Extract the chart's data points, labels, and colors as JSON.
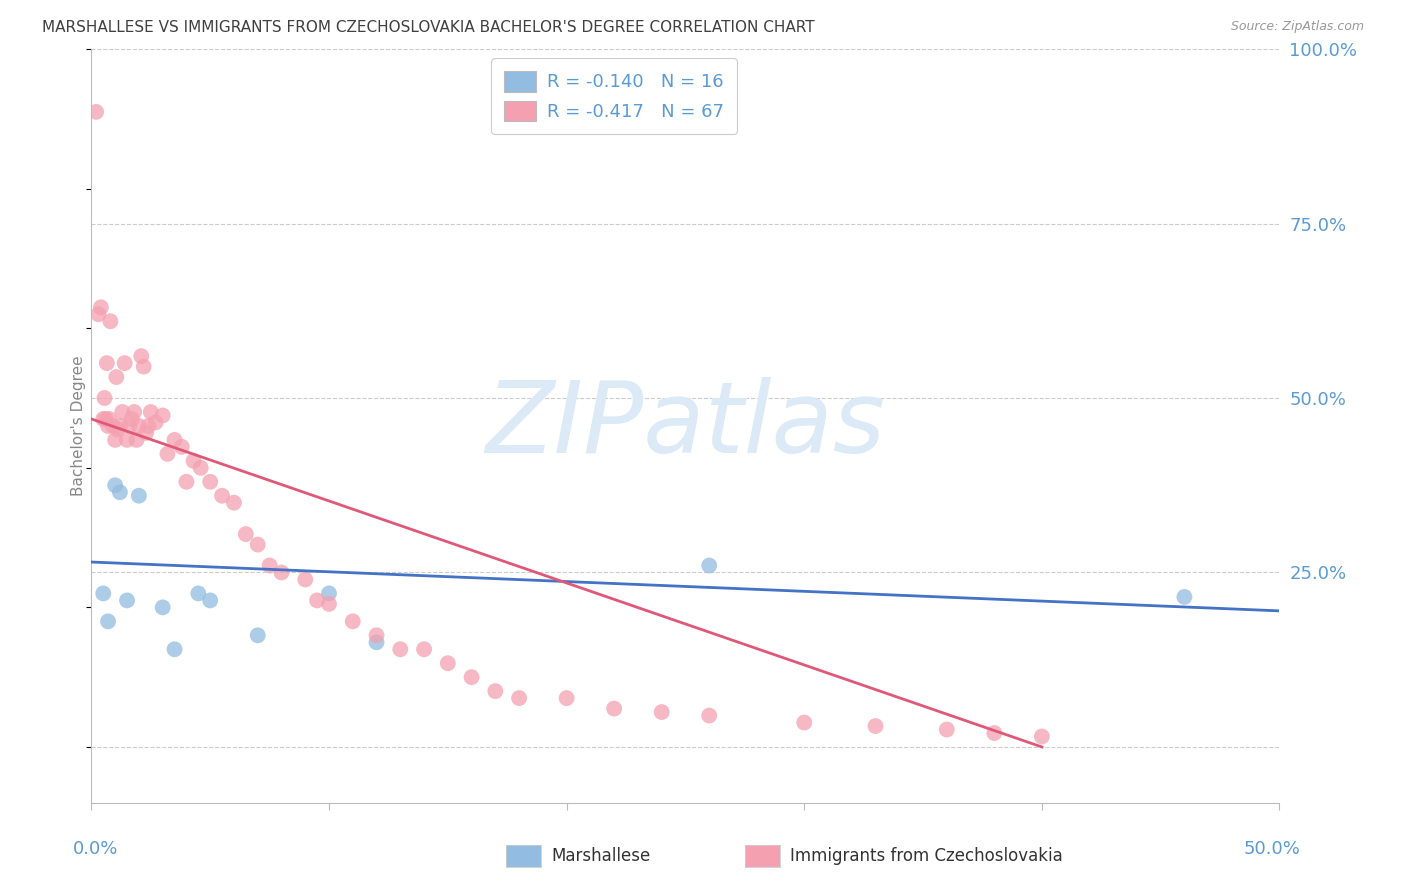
{
  "title": "MARSHALLESE VS IMMIGRANTS FROM CZECHOSLOVAKIA BACHELOR'S DEGREE CORRELATION CHART",
  "source": "Source: ZipAtlas.com",
  "ylabel": "Bachelor's Degree",
  "xmin": 0.0,
  "xmax": 50.0,
  "ymin": -8.0,
  "ymax": 100.0,
  "yticks": [
    0.0,
    25.0,
    50.0,
    75.0,
    100.0
  ],
  "ytick_labels": [
    "",
    "25.0%",
    "50.0%",
    "75.0%",
    "100.0%"
  ],
  "xtick_positions": [
    0,
    10,
    20,
    30,
    40,
    50
  ],
  "series": [
    {
      "name": "Marshallese",
      "R": -0.14,
      "N": 16,
      "dot_color": "#92bce0",
      "line_color": "#4472c4",
      "x": [
        0.5,
        0.7,
        1.0,
        1.2,
        1.5,
        2.0,
        3.0,
        3.5,
        4.5,
        5.0,
        7.0,
        10.0,
        12.0,
        26.0,
        46.0
      ],
      "y": [
        22.0,
        18.0,
        37.5,
        36.5,
        21.0,
        36.0,
        20.0,
        14.0,
        22.0,
        21.0,
        16.0,
        22.0,
        15.0,
        26.0,
        21.5
      ],
      "trend_x0": 0.0,
      "trend_y0": 26.5,
      "trend_x1": 50.0,
      "trend_y1": 19.5
    },
    {
      "name": "Immigrants from Czechoslovakia",
      "R": -0.417,
      "N": 67,
      "dot_color": "#f4a0b0",
      "line_color": "#e05878",
      "x": [
        0.2,
        0.3,
        0.4,
        0.5,
        0.55,
        0.6,
        0.65,
        0.7,
        0.75,
        0.8,
        0.9,
        1.0,
        1.05,
        1.1,
        1.2,
        1.3,
        1.4,
        1.5,
        1.6,
        1.7,
        1.8,
        1.9,
        2.0,
        2.1,
        2.2,
        2.3,
        2.4,
        2.5,
        2.7,
        3.0,
        3.2,
        3.5,
        3.8,
        4.0,
        4.3,
        4.6,
        5.0,
        5.5,
        6.0,
        6.5,
        7.0,
        7.5,
        8.0,
        9.0,
        9.5,
        10.0,
        11.0,
        12.0,
        13.0,
        14.0,
        15.0,
        16.0,
        17.0,
        18.0,
        20.0,
        22.0,
        24.0,
        26.0,
        30.0,
        33.0,
        36.0,
        38.0,
        40.0
      ],
      "y": [
        91.0,
        62.0,
        63.0,
        47.0,
        50.0,
        47.0,
        55.0,
        46.0,
        47.0,
        61.0,
        46.0,
        44.0,
        53.0,
        45.5,
        46.0,
        48.0,
        55.0,
        44.0,
        46.0,
        47.0,
        48.0,
        44.0,
        46.0,
        56.0,
        54.5,
        45.0,
        46.0,
        48.0,
        46.5,
        47.5,
        42.0,
        44.0,
        43.0,
        38.0,
        41.0,
        40.0,
        38.0,
        36.0,
        35.0,
        30.5,
        29.0,
        26.0,
        25.0,
        24.0,
        21.0,
        20.5,
        18.0,
        16.0,
        14.0,
        14.0,
        12.0,
        10.0,
        8.0,
        7.0,
        7.0,
        5.5,
        5.0,
        4.5,
        3.5,
        3.0,
        2.5,
        2.0,
        1.5
      ],
      "trend_x0": 0.0,
      "trend_y0": 47.0,
      "trend_x1": 40.0,
      "trend_y1": 0.0
    }
  ],
  "legend_R_color": "#e05060",
  "legend_N_color": "#3070c0",
  "legend_border_color": "#cccccc",
  "background_color": "#ffffff",
  "grid_color": "#cccccc",
  "grid_linestyle": "--",
  "axis_label_color": "#5b9bd5",
  "ylabel_color": "#888888",
  "title_color": "#404040",
  "source_color": "#999999",
  "watermark_text": "ZIPatlas",
  "watermark_color": "#dceaf7"
}
